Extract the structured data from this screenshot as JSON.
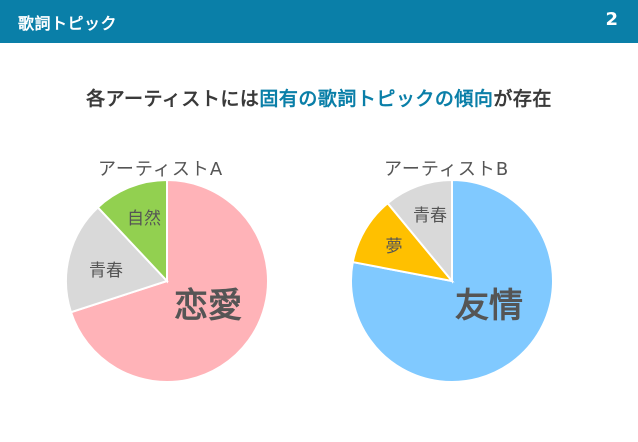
{
  "header": {
    "title": "歌詞トピック",
    "page_number": "2",
    "background": "#0a7fa8"
  },
  "headline": {
    "prefix": "各アーティストには",
    "accent": "固有の歌詞トピックの傾向",
    "suffix": "が存在",
    "accent_color": "#0a7fa8"
  },
  "chart_data": [
    {
      "type": "pie",
      "title": "アーティストA",
      "slices": [
        {
          "label": "恋愛",
          "value": 0.7,
          "color": "#ffb3b8",
          "emphasis": true
        },
        {
          "label": "青春",
          "value": 0.18,
          "color": "#d9d9d9",
          "emphasis": false
        },
        {
          "label": "自然",
          "value": 0.12,
          "color": "#92d050",
          "emphasis": false
        }
      ]
    },
    {
      "type": "pie",
      "title": "アーティストB",
      "slices": [
        {
          "label": "友情",
          "value": 0.78,
          "color": "#80c9ff",
          "emphasis": true
        },
        {
          "label": "夢",
          "value": 0.11,
          "color": "#ffc000",
          "emphasis": false
        },
        {
          "label": "青春",
          "value": 0.11,
          "color": "#d9d9d9",
          "emphasis": false
        }
      ]
    }
  ]
}
